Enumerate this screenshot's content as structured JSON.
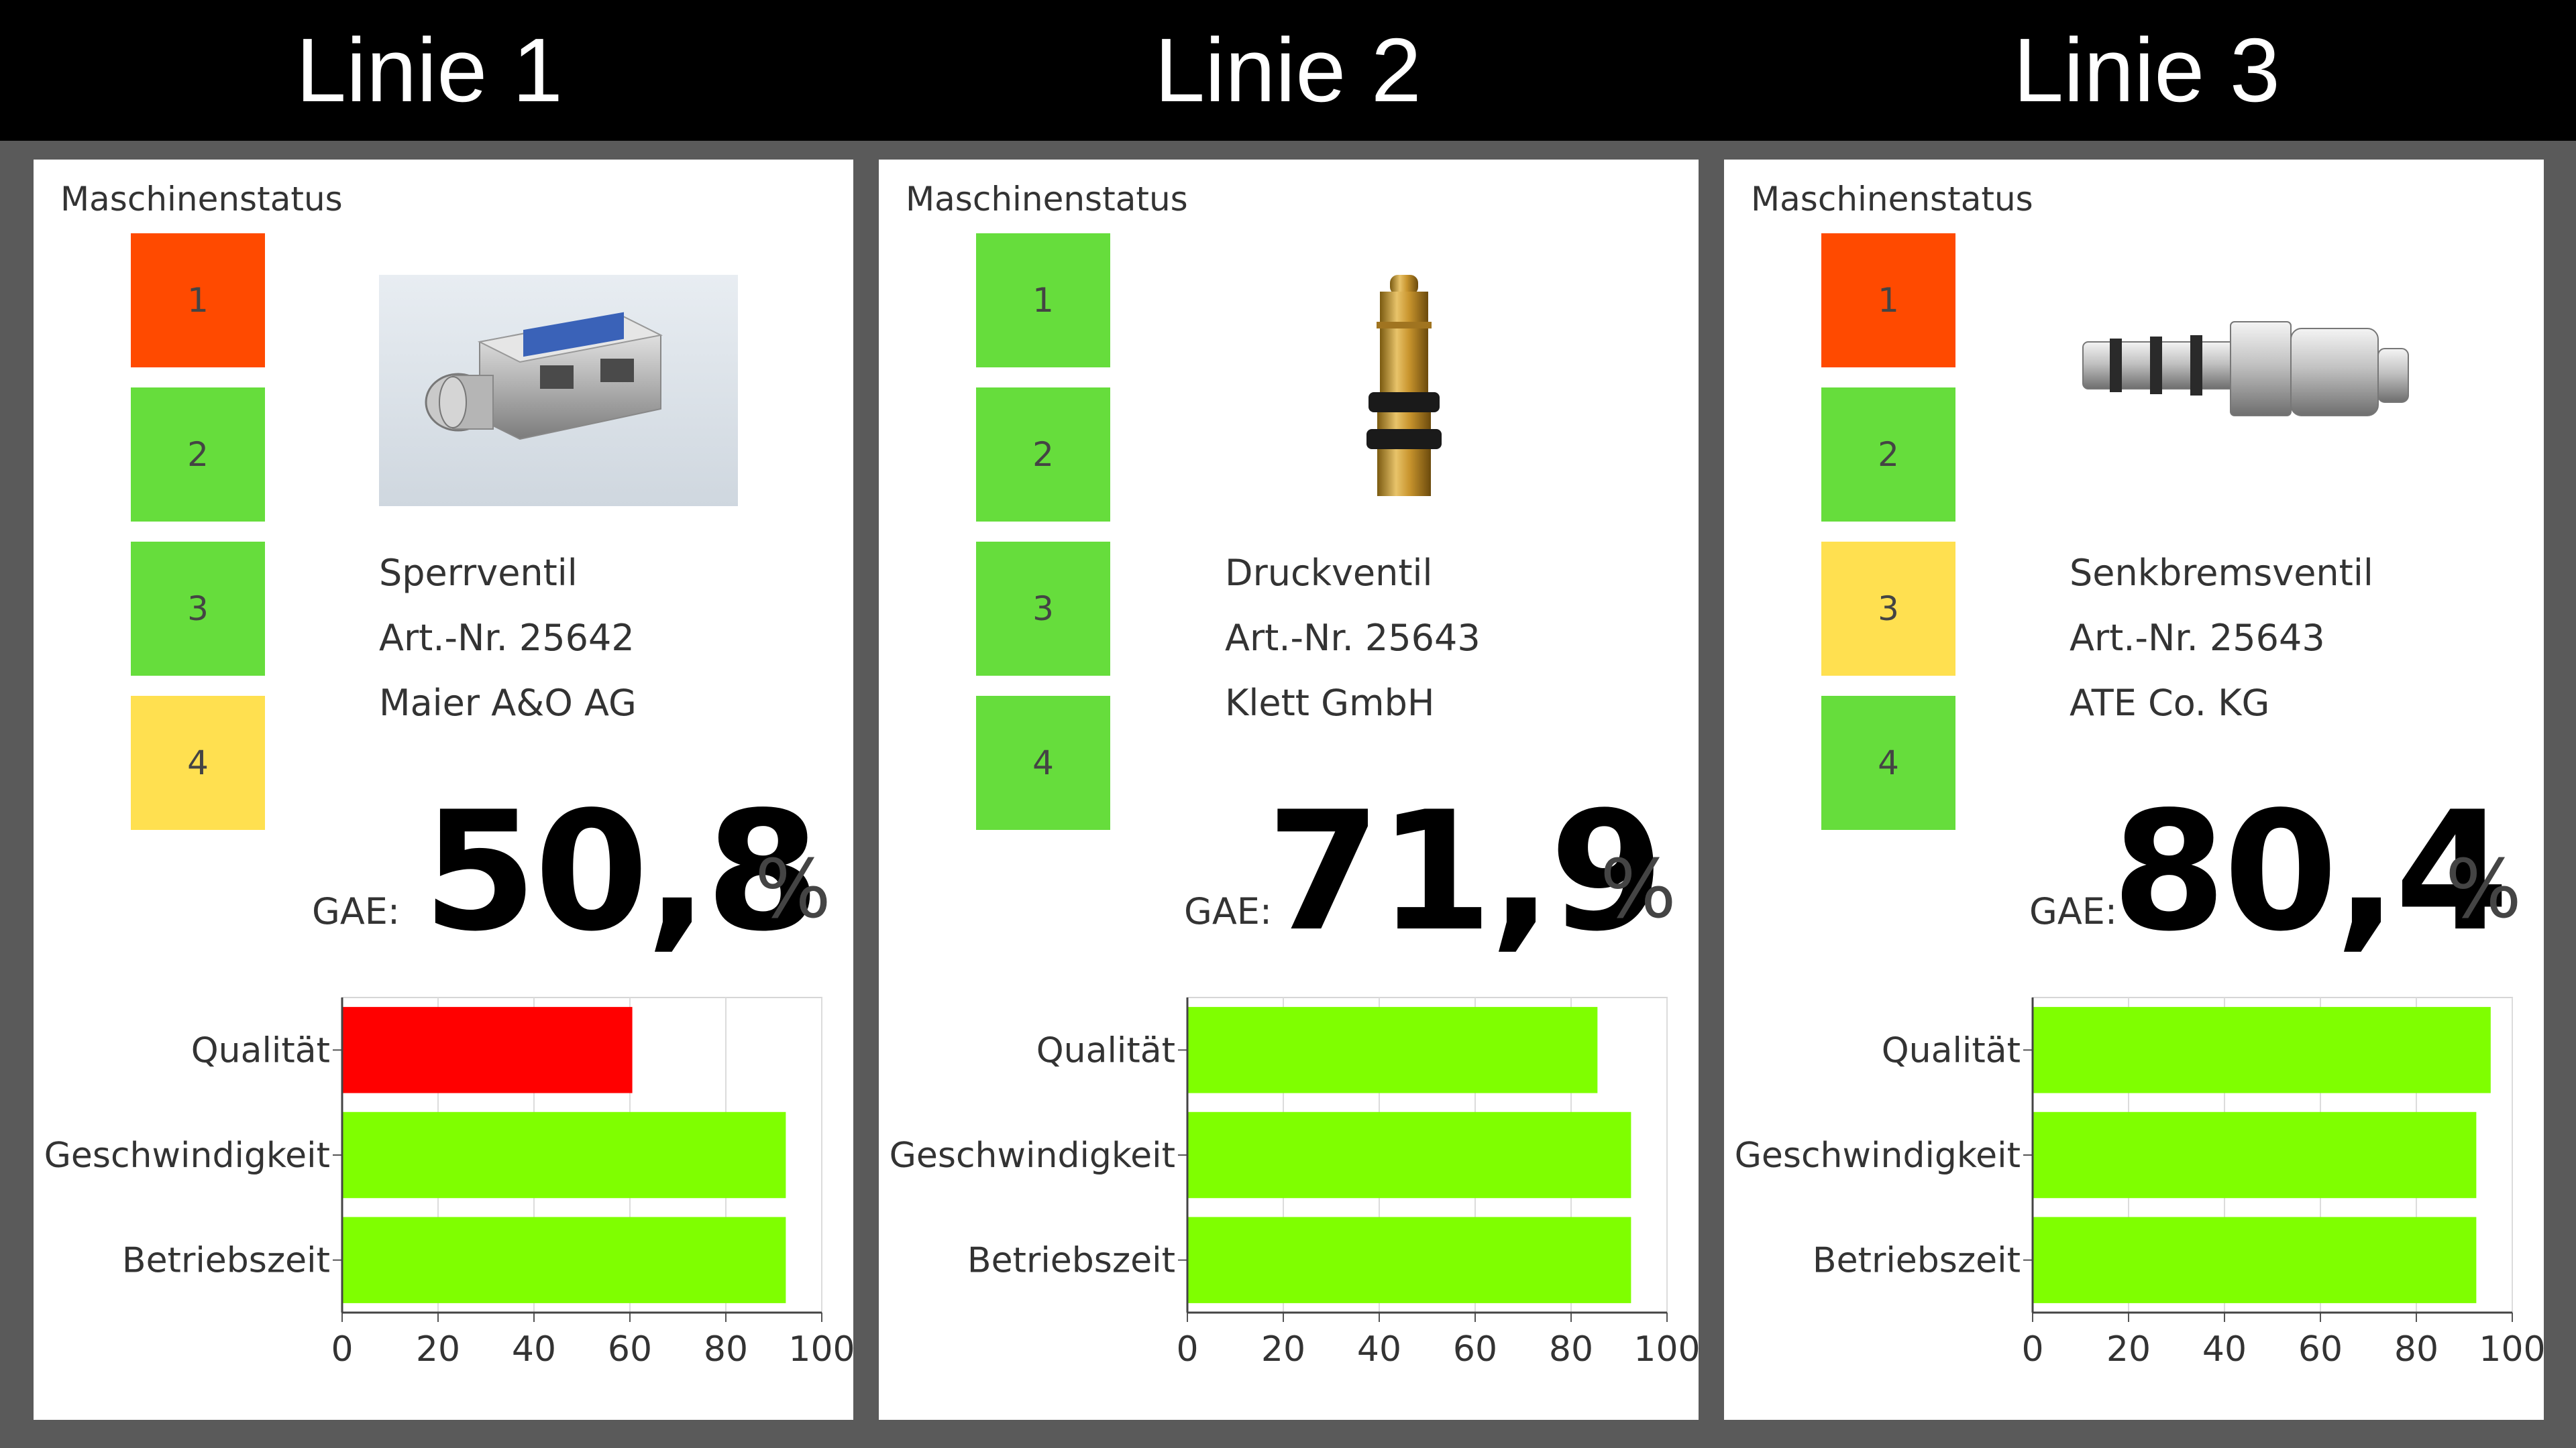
{
  "lines": [
    {
      "title": "Linie 1",
      "status_label": "Maschinenstatus",
      "status": [
        {
          "label": "1",
          "color": "#ff4a00"
        },
        {
          "label": "2",
          "color": "#66dd3c"
        },
        {
          "label": "3",
          "color": "#66dd3c"
        },
        {
          "label": "4",
          "color": "#ffe050"
        }
      ],
      "product": {
        "name": "Sperrventil",
        "article": "Art.-Nr. 25642",
        "manufacturer": "Maier A&O AG",
        "image": "sperrventil-image"
      },
      "gae_label": "GAE:",
      "gae_value": "50,8",
      "gae_unit": "%"
    },
    {
      "title": "Linie 2",
      "status_label": "Maschinenstatus",
      "status": [
        {
          "label": "1",
          "color": "#66dd3c"
        },
        {
          "label": "2",
          "color": "#66dd3c"
        },
        {
          "label": "3",
          "color": "#66dd3c"
        },
        {
          "label": "4",
          "color": "#66dd3c"
        }
      ],
      "product": {
        "name": "Druckventil",
        "article": "Art.-Nr. 25643",
        "manufacturer": "Klett GmbH",
        "image": "druckventil-image"
      },
      "gae_label": "GAE:",
      "gae_value": "71,9",
      "gae_unit": "%"
    },
    {
      "title": "Linie 3",
      "status_label": "Maschinenstatus",
      "status": [
        {
          "label": "1",
          "color": "#ff4a00"
        },
        {
          "label": "2",
          "color": "#66dd3c"
        },
        {
          "label": "3",
          "color": "#ffe050"
        },
        {
          "label": "4",
          "color": "#66dd3c"
        }
      ],
      "product": {
        "name": "Senkbremsventil",
        "article": "Art.-Nr. 25643",
        "manufacturer": "ATE Co. KG",
        "image": "senkbremsventil-image"
      },
      "gae_label": "GAE:",
      "gae_value": "80,4",
      "gae_unit": "%"
    }
  ],
  "chart_data": [
    {
      "type": "bar",
      "orientation": "horizontal",
      "categories": [
        "Qualität",
        "Geschwindigkeit",
        "Betriebszeit"
      ],
      "values": [
        60.5,
        92.5,
        92.5
      ],
      "colors": [
        "#ff0000",
        "#7fff00",
        "#7fff00"
      ],
      "xlim": [
        0,
        100
      ],
      "xticks": [
        "0",
        "20",
        "40",
        "60",
        "80",
        "100"
      ],
      "grid": true
    },
    {
      "type": "bar",
      "orientation": "horizontal",
      "categories": [
        "Qualität",
        "Geschwindigkeit",
        "Betriebszeit"
      ],
      "values": [
        85.5,
        92.5,
        92.5
      ],
      "colors": [
        "#7fff00",
        "#7fff00",
        "#7fff00"
      ],
      "xlim": [
        0,
        100
      ],
      "xticks": [
        "0",
        "20",
        "40",
        "60",
        "80",
        "100"
      ],
      "grid": true
    },
    {
      "type": "bar",
      "orientation": "horizontal",
      "categories": [
        "Qualität",
        "Geschwindigkeit",
        "Betriebszeit"
      ],
      "values": [
        95.5,
        92.5,
        92.5
      ],
      "colors": [
        "#7fff00",
        "#7fff00",
        "#7fff00"
      ],
      "xlim": [
        0,
        100
      ],
      "xticks": [
        "0",
        "20",
        "40",
        "60",
        "80",
        "100"
      ],
      "grid": true
    }
  ]
}
